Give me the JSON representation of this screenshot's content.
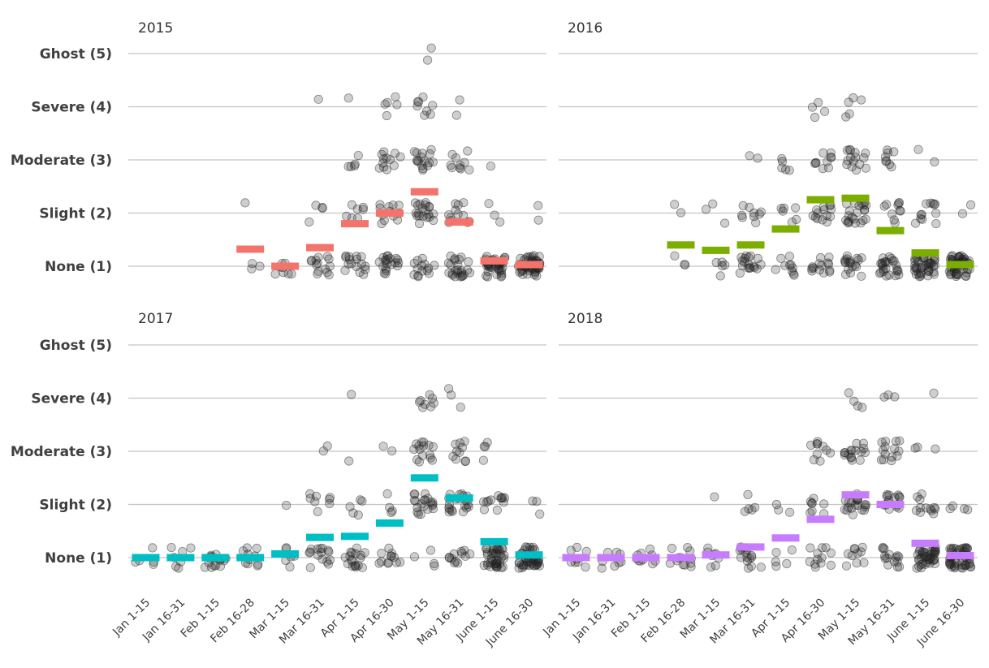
{
  "chart_data": {
    "type": "scatter",
    "facet_layout": "2x2",
    "categories": [
      "Jan 1-15",
      "Jan 16-31",
      "Feb 1-15",
      "Feb 16-28",
      "Mar 1-15",
      "Mar 16-31",
      "Apr 1-15",
      "Apr 16-30",
      "May 1-15",
      "May 16-31",
      "June 1-15",
      "June 16-30"
    ],
    "y_ticks": [
      {
        "label": "None (1)",
        "value": 1
      },
      {
        "label": "Slight (2)",
        "value": 2
      },
      {
        "label": "Moderate (3)",
        "value": 3
      },
      {
        "label": "Severe (4)",
        "value": 4
      },
      {
        "label": "Ghost (5)",
        "value": 5
      }
    ],
    "ylim": [
      0.5,
      5.6
    ],
    "grid": true,
    "legend": "none",
    "point_color": "#222222",
    "panels": [
      {
        "title": "2015",
        "color": "#f4736b",
        "means": [
          null,
          null,
          null,
          1.32,
          1.0,
          1.35,
          1.8,
          2.0,
          2.4,
          1.83,
          1.1,
          1.03
        ],
        "counts": [
          [
            0,
            0,
            0,
            0,
            0
          ],
          [
            0,
            0,
            0,
            0,
            0
          ],
          [
            0,
            0,
            0,
            0,
            0
          ],
          [
            3,
            1,
            0,
            0,
            0
          ],
          [
            8,
            0,
            0,
            0,
            0
          ],
          [
            14,
            4,
            0,
            1,
            0
          ],
          [
            16,
            7,
            5,
            1,
            0
          ],
          [
            20,
            12,
            12,
            5,
            0
          ],
          [
            14,
            20,
            16,
            8,
            2
          ],
          [
            24,
            12,
            10,
            2,
            0
          ],
          [
            40,
            3,
            1,
            0,
            0
          ],
          [
            50,
            2,
            0,
            0,
            0
          ]
        ]
      },
      {
        "title": "2016",
        "color": "#7cae00",
        "means": [
          null,
          null,
          null,
          1.4,
          1.3,
          1.4,
          1.7,
          2.25,
          2.28,
          1.67,
          1.25,
          1.03
        ],
        "counts": [
          [
            0,
            0,
            0,
            0,
            0
          ],
          [
            0,
            0,
            0,
            0,
            0
          ],
          [
            0,
            0,
            0,
            0,
            0
          ],
          [
            3,
            2,
            0,
            0,
            0
          ],
          [
            5,
            3,
            0,
            0,
            0
          ],
          [
            18,
            9,
            2,
            0,
            0
          ],
          [
            10,
            6,
            5,
            0,
            0
          ],
          [
            14,
            14,
            10,
            4,
            0
          ],
          [
            18,
            22,
            15,
            5,
            0
          ],
          [
            25,
            10,
            8,
            0,
            0
          ],
          [
            40,
            12,
            2,
            0,
            0
          ],
          [
            52,
            2,
            0,
            0,
            0
          ]
        ]
      },
      {
        "title": "2017",
        "color": "#00bfc4",
        "means": [
          1.0,
          1.0,
          1.0,
          1.0,
          1.07,
          1.38,
          1.4,
          1.65,
          2.5,
          2.12,
          1.3,
          1.05
        ],
        "counts": [
          [
            5,
            0,
            0,
            0,
            0
          ],
          [
            7,
            0,
            0,
            0,
            0
          ],
          [
            15,
            0,
            0,
            0,
            0
          ],
          [
            10,
            0,
            0,
            0,
            0
          ],
          [
            6,
            1,
            0,
            0,
            0
          ],
          [
            15,
            8,
            2,
            0,
            0
          ],
          [
            18,
            5,
            1,
            1,
            0
          ],
          [
            12,
            4,
            2,
            0,
            0
          ],
          [
            4,
            20,
            15,
            8,
            0
          ],
          [
            12,
            20,
            10,
            3,
            0
          ],
          [
            40,
            12,
            4,
            0,
            0
          ],
          [
            40,
            3,
            0,
            0,
            0
          ]
        ]
      },
      {
        "title": "2018",
        "color": "#c77cff",
        "means": [
          1.0,
          1.0,
          1.0,
          1.0,
          1.05,
          1.2,
          1.37,
          1.72,
          2.18,
          2.0,
          1.27,
          1.04
        ],
        "counts": [
          [
            8,
            0,
            0,
            0,
            0
          ],
          [
            8,
            0,
            0,
            0,
            0
          ],
          [
            10,
            0,
            0,
            0,
            0
          ],
          [
            12,
            0,
            0,
            0,
            0
          ],
          [
            8,
            1,
            0,
            0,
            0
          ],
          [
            15,
            5,
            0,
            0,
            0
          ],
          [
            5,
            3,
            0,
            0,
            0
          ],
          [
            12,
            8,
            10,
            0,
            0
          ],
          [
            10,
            20,
            16,
            4,
            0
          ],
          [
            15,
            15,
            14,
            3,
            0
          ],
          [
            40,
            12,
            3,
            1,
            0
          ],
          [
            48,
            4,
            0,
            0,
            0
          ]
        ]
      }
    ]
  }
}
